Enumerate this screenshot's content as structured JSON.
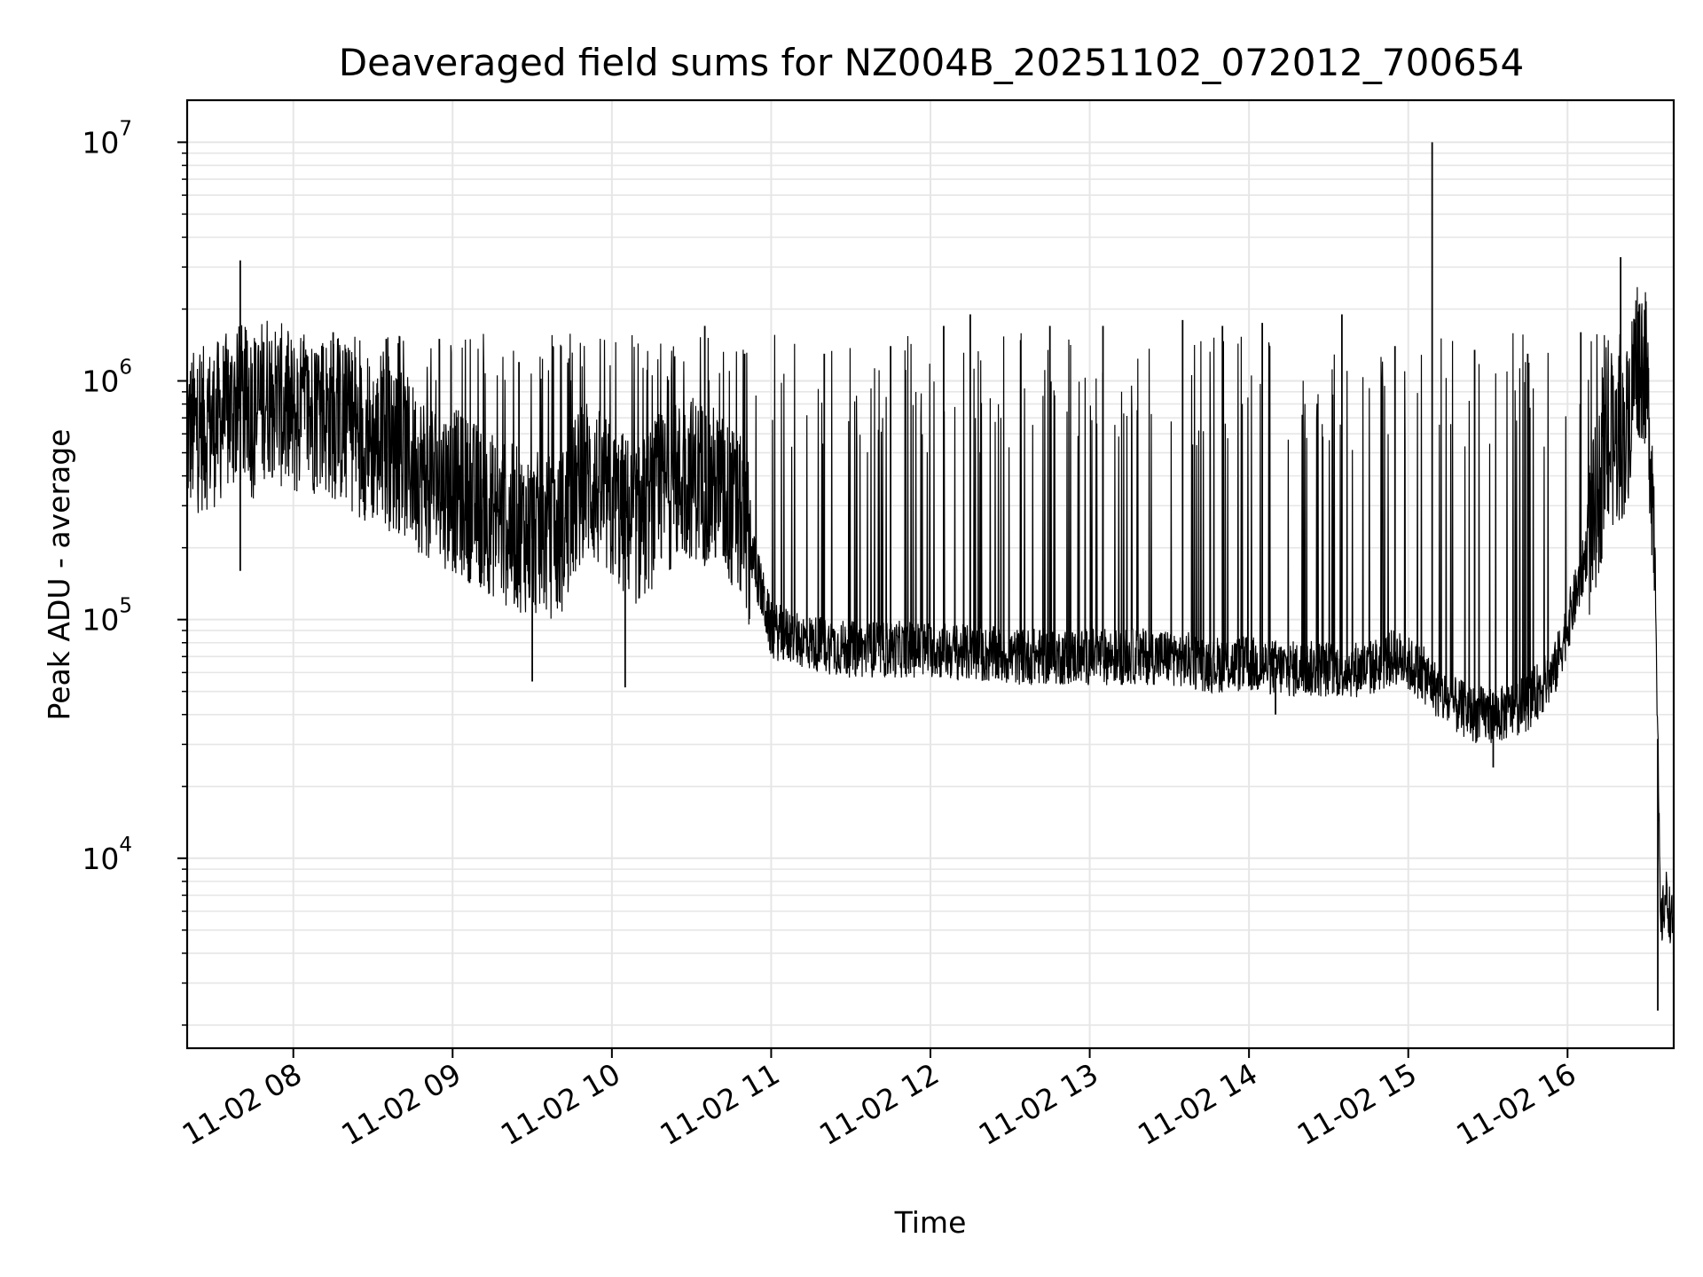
{
  "chart_data": {
    "type": "line",
    "title": "Deaveraged field sums for NZ004B_20251102_072012_700654",
    "xlabel": "Time",
    "ylabel": "Peak ADU - average",
    "x_scale": "time",
    "y_scale": "log",
    "xlim": [
      "2025-11-02 07:20",
      "2025-11-02 16:40"
    ],
    "ylim": [
      1600,
      15000000
    ],
    "grid": true,
    "line_color": "#000000",
    "grid_color": "#e6e6e6",
    "x_ticks": [
      "11-02 08",
      "11-02 09",
      "11-02 10",
      "11-02 11",
      "11-02 12",
      "11-02 13",
      "11-02 14",
      "11-02 15",
      "11-02 16"
    ],
    "y_ticks": [
      {
        "value": 10000,
        "base": "10",
        "exp": "4"
      },
      {
        "value": 100000,
        "base": "10",
        "exp": "5"
      },
      {
        "value": 1000000,
        "base": "10",
        "exp": "6"
      },
      {
        "value": 10000000,
        "base": "10",
        "exp": "7"
      }
    ],
    "series": [
      {
        "x": [
          "2025-11-02 07:20",
          "2025-11-02 07:30",
          "2025-11-02 07:40",
          "2025-11-02 07:45",
          "2025-11-02 07:50",
          "2025-11-02 08:00",
          "2025-11-02 08:10",
          "2025-11-02 08:20",
          "2025-11-02 08:30",
          "2025-11-02 08:40",
          "2025-11-02 08:50",
          "2025-11-02 09:00",
          "2025-11-02 09:10",
          "2025-11-02 09:20",
          "2025-11-02 09:30",
          "2025-11-02 09:40",
          "2025-11-02 09:50",
          "2025-11-02 10:00",
          "2025-11-02 10:10",
          "2025-11-02 10:20",
          "2025-11-02 10:30",
          "2025-11-02 10:40",
          "2025-11-02 10:50",
          "2025-11-02 11:00",
          "2025-11-02 11:15",
          "2025-11-02 11:30",
          "2025-11-02 11:45",
          "2025-11-02 12:00",
          "2025-11-02 12:15",
          "2025-11-02 12:30",
          "2025-11-02 12:45",
          "2025-11-02 13:00",
          "2025-11-02 13:15",
          "2025-11-02 13:30",
          "2025-11-02 13:45",
          "2025-11-02 14:00",
          "2025-11-02 14:15",
          "2025-11-02 14:30",
          "2025-11-02 14:45",
          "2025-11-02 14:55",
          "2025-11-02 15:05",
          "2025-11-02 15:15",
          "2025-11-02 15:25",
          "2025-11-02 15:35",
          "2025-11-02 15:45",
          "2025-11-02 15:55",
          "2025-11-02 16:05",
          "2025-11-02 16:15",
          "2025-11-02 16:22",
          "2025-11-02 16:26",
          "2025-11-02 16:29",
          "2025-11-02 16:31",
          "2025-11-02 16:33",
          "2025-11-02 16:35",
          "2025-11-02 16:37",
          "2025-11-02 16:40"
        ],
        "y": [
          600000,
          650000,
          800000,
          700000,
          900000,
          700000,
          750000,
          650000,
          550000,
          500000,
          400000,
          350000,
          300000,
          250000,
          230000,
          220000,
          400000,
          300000,
          250000,
          350000,
          400000,
          350000,
          250000,
          90000,
          80000,
          75000,
          75000,
          75000,
          72000,
          70000,
          70000,
          70000,
          70000,
          70000,
          65000,
          65000,
          62000,
          62000,
          62000,
          70000,
          60000,
          45000,
          40000,
          40000,
          45000,
          60000,
          150000,
          500000,
          600000,
          1300000,
          1200000,
          600000,
          200000,
          5000,
          7000,
          5000
        ],
        "spikes": [
          {
            "x": "2025-11-02 07:40",
            "y": 3200000
          },
          {
            "x": "2025-11-02 07:40",
            "y": 160000
          },
          {
            "x": "2025-11-02 08:15",
            "y": 1600000
          },
          {
            "x": "2025-11-02 08:35",
            "y": 1500000
          },
          {
            "x": "2025-11-02 08:55",
            "y": 1500000
          },
          {
            "x": "2025-11-02 09:25",
            "y": 1200000
          },
          {
            "x": "2025-11-02 09:30",
            "y": 55000
          },
          {
            "x": "2025-11-02 10:05",
            "y": 52000
          },
          {
            "x": "2025-11-02 10:35",
            "y": 1700000
          },
          {
            "x": "2025-11-02 10:50",
            "y": 1300000
          },
          {
            "x": "2025-11-02 11:20",
            "y": 1300000
          },
          {
            "x": "2025-11-02 11:45",
            "y": 1400000
          },
          {
            "x": "2025-11-02 12:05",
            "y": 1700000
          },
          {
            "x": "2025-11-02 12:15",
            "y": 1900000
          },
          {
            "x": "2025-11-02 12:45",
            "y": 1700000
          },
          {
            "x": "2025-11-02 13:05",
            "y": 1700000
          },
          {
            "x": "2025-11-02 13:35",
            "y": 1800000
          },
          {
            "x": "2025-11-02 13:50",
            "y": 1700000
          },
          {
            "x": "2025-11-02 14:05",
            "y": 1750000
          },
          {
            "x": "2025-11-02 14:35",
            "y": 1900000
          },
          {
            "x": "2025-11-02 14:10",
            "y": 40000
          },
          {
            "x": "2025-11-02 14:55",
            "y": 1400000
          },
          {
            "x": "2025-11-02 15:09",
            "y": 10000000
          },
          {
            "x": "2025-11-02 15:25",
            "y": 1350000
          },
          {
            "x": "2025-11-02 15:32",
            "y": 24000
          },
          {
            "x": "2025-11-02 15:45",
            "y": 1300000
          },
          {
            "x": "2025-11-02 16:05",
            "y": 1600000
          },
          {
            "x": "2025-11-02 16:20",
            "y": 3300000
          },
          {
            "x": "2025-11-02 16:34",
            "y": 2300
          }
        ]
      }
    ]
  }
}
